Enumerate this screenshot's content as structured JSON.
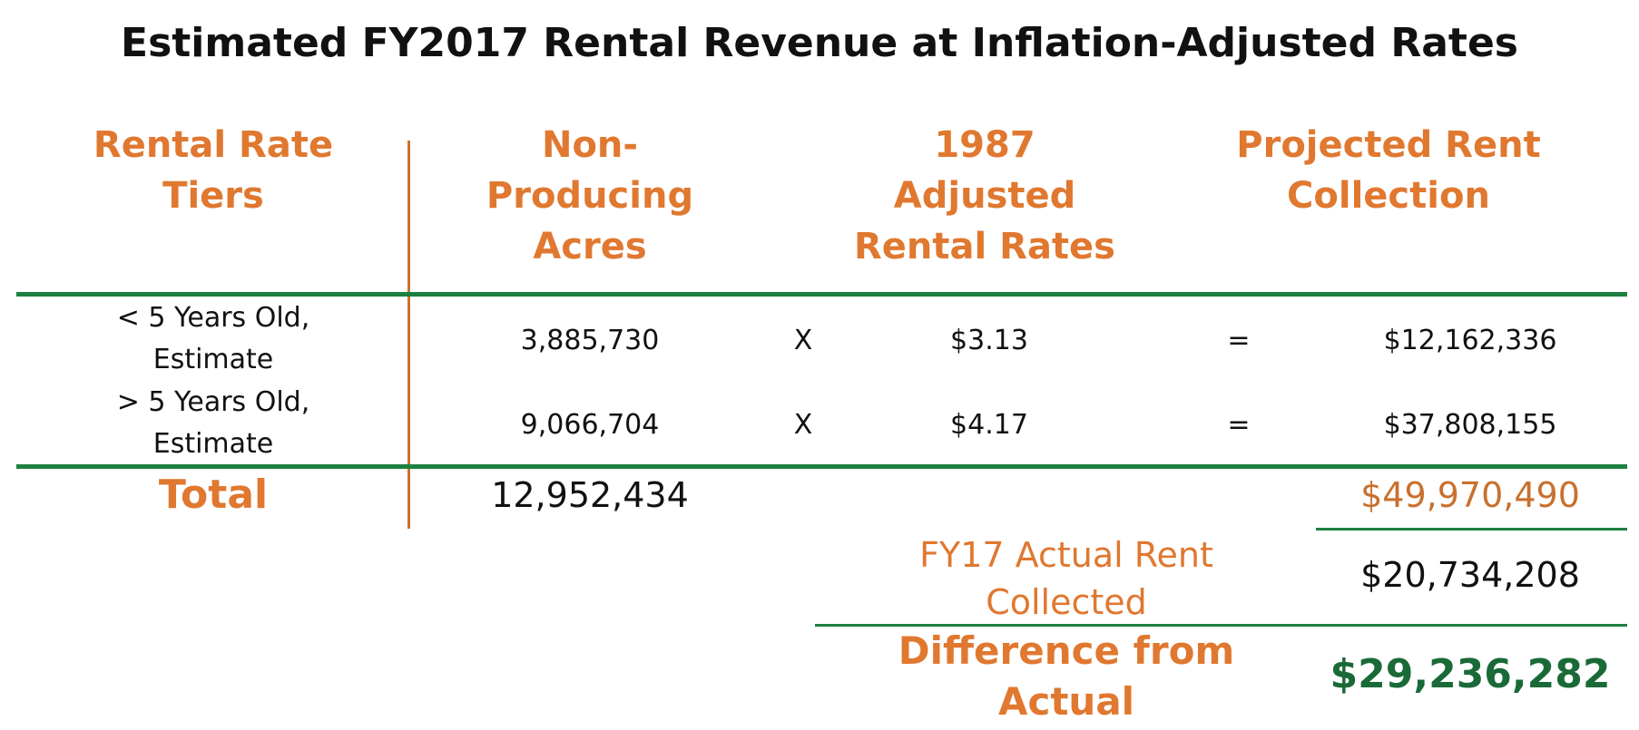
{
  "title": "Estimated FY2017 Rental Revenue at Inflation-Adjusted Rates",
  "headers": {
    "tiers": [
      "Rental Rate",
      "Tiers"
    ],
    "acres": [
      "Non-",
      "Producing",
      "Acres"
    ],
    "rates": [
      "1987",
      "Adjusted",
      "Rental Rates"
    ],
    "projected": [
      "Projected Rent",
      "Collection"
    ]
  },
  "rows": [
    {
      "tier": [
        "< 5 Years Old,",
        "Estimate"
      ],
      "acres": "3,885,730",
      "times": "X",
      "rate": "$3.13",
      "equals": "=",
      "projected": "$12,162,336"
    },
    {
      "tier": [
        "> 5 Years Old,",
        "Estimate"
      ],
      "acres": "9,066,704",
      "times": "X",
      "rate": "$4.17",
      "equals": "=",
      "projected": "$37,808,155"
    }
  ],
  "total": {
    "label": "Total",
    "acres": "12,952,434",
    "projected": "$49,970,490"
  },
  "actual": {
    "label": [
      "FY17 Actual Rent",
      "Collected"
    ],
    "value": "$20,734,208"
  },
  "difference": {
    "label": [
      "Difference from",
      "Actual"
    ],
    "value": "$29,236,282"
  },
  "colors": {
    "orange": "#e07830",
    "green_rule": "#1e8040",
    "green_value": "#1a6a38",
    "divider": "#c8702e"
  }
}
